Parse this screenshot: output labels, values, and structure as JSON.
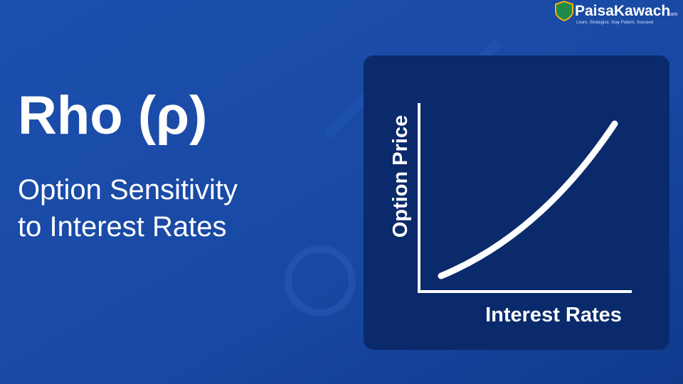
{
  "header": {
    "title": "Rho (ρ)",
    "subtitle_lines": [
      "Option Sensitivity",
      "to Interest Rates"
    ]
  },
  "logo": {
    "name": "PaisaKawach",
    "domain": ".com",
    "tagline": "Learn, Strategize, Stay Patient, Succeed"
  },
  "diagram": {
    "y_axis_label": "Option Price",
    "x_axis_label": "Interest Rates"
  }
}
